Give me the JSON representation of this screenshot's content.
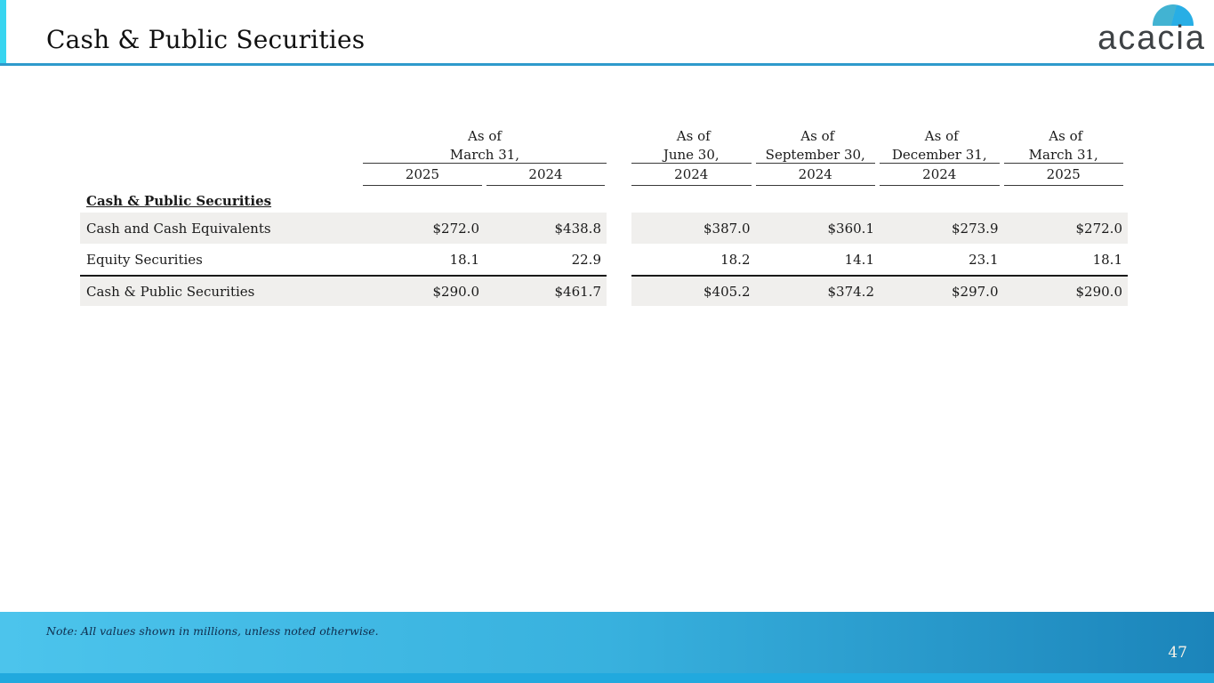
{
  "header": {
    "title": "Cash & Public Securities",
    "logo_text": "acacia"
  },
  "colors": {
    "left_bar_cyan": "#38d5f0",
    "header_rule_blue": "#2e9acc",
    "row_stripe_gray": "#f0efed",
    "footer_gradient_left": "#4cc4ec",
    "footer_gradient_right": "#1b84ba",
    "footer_strip_cyan": "#21a9de",
    "logo_dome_left": "#42b3d2",
    "logo_dome_right": "#28aee5",
    "logo_text_gray": "#3e4245"
  },
  "table": {
    "section_label": "Cash & Public Securities",
    "column_groups": [
      {
        "as_of": "As of",
        "date": "March 31,",
        "years": [
          "2025",
          "2024"
        ]
      },
      {
        "as_of": "As of",
        "date": "June 30,",
        "years": [
          "2024"
        ]
      },
      {
        "as_of": "As of",
        "date": "September 30,",
        "years": [
          "2024"
        ]
      },
      {
        "as_of": "As of",
        "date": "December 31,",
        "years": [
          "2024"
        ]
      },
      {
        "as_of": "As of",
        "date": "March 31,",
        "years": [
          "2025"
        ]
      }
    ],
    "rows": [
      {
        "label": "Cash and Cash Equivalents",
        "values": [
          "$272.0",
          "$438.8",
          "$387.0",
          "$360.1",
          "$273.9",
          "$272.0"
        ]
      },
      {
        "label": "Equity Securities",
        "values": [
          "18.1",
          "22.9",
          "18.2",
          "14.1",
          "23.1",
          "18.1"
        ]
      },
      {
        "label": "Cash & Public Securities",
        "values": [
          "$290.0",
          "$461.7",
          "$405.2",
          "$374.2",
          "$297.0",
          "$290.0"
        ]
      }
    ]
  },
  "footer": {
    "note": "Note: All values shown in millions, unless noted otherwise.",
    "page_number": "47"
  }
}
